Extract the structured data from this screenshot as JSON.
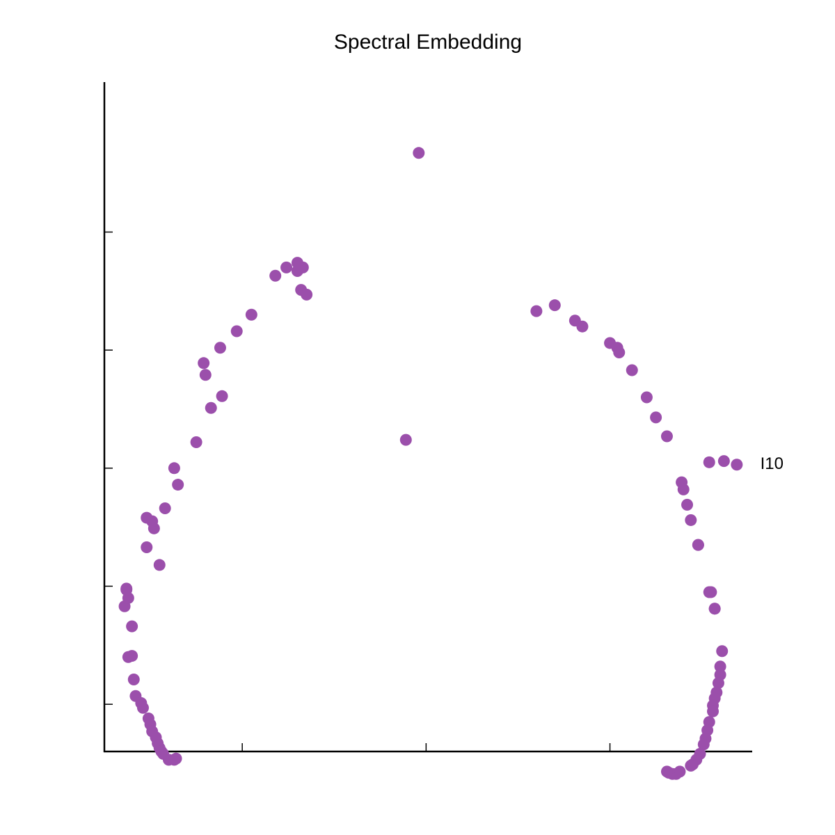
{
  "chart_data": {
    "type": "scatter",
    "title": "Spectral Embedding",
    "xlabel": "",
    "ylabel": "",
    "xlim": [
      -0.75,
      2.77
    ],
    "ylim": [
      -0.4,
      5.27
    ],
    "x_ticks": [
      0,
      1,
      2
    ],
    "y_ticks": [
      0,
      1,
      2,
      3,
      4
    ],
    "show_tick_labels": false,
    "grid": false,
    "marker_color": "#9b4fab",
    "annotations": [
      {
        "text": "I10",
        "x": 2.78,
        "y": 2.04
      }
    ],
    "points": [
      [
        0.96,
        4.67
      ],
      [
        0.89,
        2.24
      ],
      [
        -0.42,
        1.66
      ],
      [
        -0.52,
        1.33
      ],
      [
        -0.64,
        0.83
      ],
      [
        -0.6,
        0.66
      ],
      [
        -0.6,
        0.41
      ],
      [
        -0.12,
        3.02
      ],
      [
        -0.21,
        2.89
      ],
      [
        -0.03,
        3.16
      ],
      [
        0.05,
        3.3
      ],
      [
        -0.2,
        2.79
      ],
      [
        -0.11,
        2.61
      ],
      [
        -0.17,
        2.51
      ],
      [
        -0.25,
        2.22
      ],
      [
        -0.37,
        2.0
      ],
      [
        0.18,
        3.63
      ],
      [
        0.24,
        3.7
      ],
      [
        0.3,
        3.67
      ],
      [
        0.3,
        3.74
      ],
      [
        0.33,
        3.7
      ],
      [
        0.32,
        3.51
      ],
      [
        0.35,
        3.47
      ],
      [
        0.31,
        3.7
      ],
      [
        -0.35,
        1.86
      ],
      [
        -0.48,
        1.49
      ],
      [
        -0.49,
        1.55
      ],
      [
        -0.52,
        1.58
      ],
      [
        -0.45,
        1.18
      ],
      [
        -0.62,
        0.9
      ],
      [
        -0.63,
        0.97
      ],
      [
        -0.63,
        0.98
      ],
      [
        -0.62,
        0.4
      ],
      [
        -0.59,
        0.21
      ],
      [
        -0.58,
        0.07
      ],
      [
        -0.55,
        0.01
      ],
      [
        -0.54,
        -0.03
      ],
      [
        -0.51,
        -0.12
      ],
      [
        -0.5,
        -0.17
      ],
      [
        -0.49,
        -0.23
      ],
      [
        -0.47,
        -0.28
      ],
      [
        -0.46,
        -0.33
      ],
      [
        -0.45,
        -0.37
      ],
      [
        -0.44,
        -0.4
      ],
      [
        -0.43,
        -0.42
      ],
      [
        -0.4,
        -0.47
      ],
      [
        -0.37,
        -0.47
      ],
      [
        -0.36,
        -0.46
      ],
      [
        1.7,
        3.38
      ],
      [
        1.6,
        3.33
      ],
      [
        1.81,
        3.25
      ],
      [
        1.85,
        3.2
      ],
      [
        2.0,
        3.06
      ],
      [
        2.04,
        3.02
      ],
      [
        2.05,
        2.98
      ],
      [
        2.12,
        2.83
      ],
      [
        2.2,
        2.6
      ],
      [
        2.25,
        2.43
      ],
      [
        2.31,
        2.27
      ],
      [
        2.39,
        1.88
      ],
      [
        2.4,
        1.82
      ],
      [
        2.42,
        1.69
      ],
      [
        2.44,
        1.56
      ],
      [
        2.48,
        1.35
      ],
      [
        2.54,
        0.95
      ],
      [
        2.57,
        0.81
      ],
      [
        2.48,
        1.35
      ],
      [
        2.55,
        0.95
      ],
      [
        2.57,
        0.81
      ],
      [
        2.54,
        2.05
      ],
      [
        2.62,
        2.06
      ],
      [
        2.69,
        2.03
      ],
      [
        2.61,
        0.45
      ],
      [
        2.6,
        0.32
      ],
      [
        2.6,
        0.25
      ],
      [
        2.59,
        0.18
      ],
      [
        2.58,
        0.1
      ],
      [
        2.57,
        0.05
      ],
      [
        2.56,
        -0.01
      ],
      [
        2.56,
        -0.06
      ],
      [
        2.54,
        -0.15
      ],
      [
        2.53,
        -0.22
      ],
      [
        2.52,
        -0.29
      ],
      [
        2.51,
        -0.34
      ],
      [
        2.49,
        -0.42
      ],
      [
        2.47,
        -0.47
      ],
      [
        2.45,
        -0.51
      ],
      [
        2.44,
        -0.52
      ],
      [
        2.38,
        -0.57
      ],
      [
        2.36,
        -0.59
      ],
      [
        2.34,
        -0.59
      ],
      [
        2.32,
        -0.58
      ],
      [
        2.31,
        -0.57
      ]
    ]
  }
}
